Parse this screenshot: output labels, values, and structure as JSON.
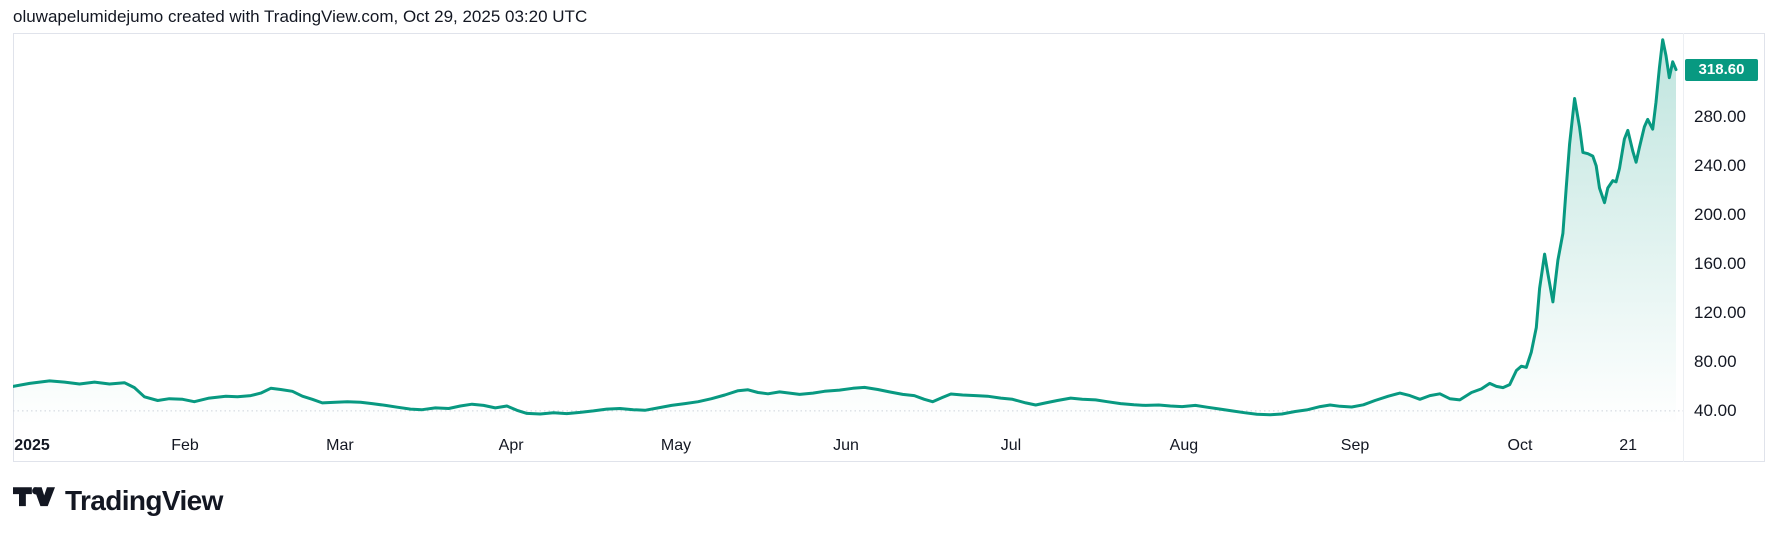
{
  "header": {
    "attribution": "oluwapelumidejumo created with TradingView.com, Oct 29, 2025 03:20 UTC"
  },
  "price_label": {
    "value": "318.60"
  },
  "footer": {
    "logo_text": "TradingView",
    "logo_icon": "tradingview-logo-icon"
  },
  "colors": {
    "line": "#089981",
    "fill_top": "rgba(8,153,129,0.26)",
    "fill_bottom": "rgba(8,153,129,0)",
    "badge_bg": "#089981",
    "badge_text": "#ffffff",
    "axis_text": "#131722",
    "border": "#e0e3eb",
    "gridline": "#cfd3dc"
  },
  "chart_data": {
    "type": "area",
    "title": "",
    "xlabel": "",
    "ylabel": "",
    "legend": [],
    "grid": "single faint dotted line at 40.00",
    "gridline_at": 40,
    "ylim": [
      28.5,
      348.5
    ],
    "last_value": 318.6,
    "y_ticks": [
      {
        "label": "280.00",
        "value": 280
      },
      {
        "label": "240.00",
        "value": 240
      },
      {
        "label": "200.00",
        "value": 200
      },
      {
        "label": "160.00",
        "value": 160
      },
      {
        "label": "120.00",
        "value": 120
      },
      {
        "label": "80.00",
        "value": 80
      },
      {
        "label": "40.00",
        "value": 40
      }
    ],
    "x_ticks": [
      {
        "label": "2025",
        "f": 0.0114,
        "bold": true
      },
      {
        "label": "Feb",
        "f": 0.1034
      },
      {
        "label": "Mar",
        "f": 0.1966
      },
      {
        "label": "Apr",
        "f": 0.2995
      },
      {
        "label": "May",
        "f": 0.3987
      },
      {
        "label": "Jun",
        "f": 0.5009
      },
      {
        "label": "Jul",
        "f": 0.6001
      },
      {
        "label": "Aug",
        "f": 0.7041
      },
      {
        "label": "Sep",
        "f": 0.807
      },
      {
        "label": "Oct",
        "f": 0.9062
      },
      {
        "label": "21",
        "f": 0.9712
      }
    ],
    "series": [
      {
        "name": "price",
        "points": [
          [
            0,
            60
          ],
          [
            0.01,
            62.5
          ],
          [
            0.022,
            64.5
          ],
          [
            0.031,
            63.5
          ],
          [
            0.04,
            62
          ],
          [
            0.049,
            63.5
          ],
          [
            0.058,
            62
          ],
          [
            0.067,
            63
          ],
          [
            0.073,
            59
          ],
          [
            0.079,
            51.5
          ],
          [
            0.087,
            48.5
          ],
          [
            0.094,
            50
          ],
          [
            0.102,
            49.5
          ],
          [
            0.109,
            47.5
          ],
          [
            0.118,
            50.5
          ],
          [
            0.128,
            52
          ],
          [
            0.135,
            51.5
          ],
          [
            0.143,
            52.5
          ],
          [
            0.149,
            54.5
          ],
          [
            0.155,
            58.5
          ],
          [
            0.161,
            57.5
          ],
          [
            0.168,
            56
          ],
          [
            0.174,
            52
          ],
          [
            0.18,
            49.5
          ],
          [
            0.186,
            46.5
          ],
          [
            0.194,
            47
          ],
          [
            0.201,
            47.5
          ],
          [
            0.209,
            47
          ],
          [
            0.216,
            46
          ],
          [
            0.224,
            44.5
          ],
          [
            0.231,
            43
          ],
          [
            0.239,
            41.5
          ],
          [
            0.246,
            41
          ],
          [
            0.254,
            42.5
          ],
          [
            0.262,
            42
          ],
          [
            0.269,
            44
          ],
          [
            0.276,
            45.5
          ],
          [
            0.283,
            44.5
          ],
          [
            0.29,
            42.5
          ],
          [
            0.297,
            44
          ],
          [
            0.303,
            40.5
          ],
          [
            0.309,
            38
          ],
          [
            0.317,
            37.5
          ],
          [
            0.325,
            38.5
          ],
          [
            0.333,
            37.8
          ],
          [
            0.341,
            38.8
          ],
          [
            0.349,
            40
          ],
          [
            0.357,
            41.5
          ],
          [
            0.365,
            42
          ],
          [
            0.373,
            41
          ],
          [
            0.38,
            40.5
          ],
          [
            0.388,
            42.5
          ],
          [
            0.396,
            44.5
          ],
          [
            0.404,
            46
          ],
          [
            0.412,
            47.5
          ],
          [
            0.42,
            50
          ],
          [
            0.428,
            53
          ],
          [
            0.436,
            56.5
          ],
          [
            0.442,
            57.2
          ],
          [
            0.448,
            55
          ],
          [
            0.454,
            54
          ],
          [
            0.461,
            55.5
          ],
          [
            0.467,
            54.5
          ],
          [
            0.473,
            53.5
          ],
          [
            0.481,
            54.5
          ],
          [
            0.488,
            56
          ],
          [
            0.497,
            57
          ],
          [
            0.505,
            58.5
          ],
          [
            0.512,
            59.2
          ],
          [
            0.52,
            57.5
          ],
          [
            0.527,
            55.5
          ],
          [
            0.535,
            53.5
          ],
          [
            0.542,
            52.5
          ],
          [
            0.548,
            49.5
          ],
          [
            0.553,
            47.5
          ],
          [
            0.559,
            51
          ],
          [
            0.564,
            53.8
          ],
          [
            0.571,
            53
          ],
          [
            0.579,
            52.5
          ],
          [
            0.586,
            52
          ],
          [
            0.594,
            50.5
          ],
          [
            0.601,
            49.5
          ],
          [
            0.609,
            46.5
          ],
          [
            0.615,
            44.8
          ],
          [
            0.621,
            46.5
          ],
          [
            0.628,
            48.5
          ],
          [
            0.636,
            50.5
          ],
          [
            0.643,
            49.5
          ],
          [
            0.651,
            49
          ],
          [
            0.658,
            47.5
          ],
          [
            0.666,
            46
          ],
          [
            0.674,
            45
          ],
          [
            0.681,
            44.5
          ],
          [
            0.689,
            44.8
          ],
          [
            0.696,
            44
          ],
          [
            0.703,
            43.5
          ],
          [
            0.711,
            44.5
          ],
          [
            0.718,
            43
          ],
          [
            0.726,
            41.5
          ],
          [
            0.733,
            40
          ],
          [
            0.741,
            38.5
          ],
          [
            0.748,
            37.2
          ],
          [
            0.756,
            36.8
          ],
          [
            0.763,
            37.5
          ],
          [
            0.771,
            39.5
          ],
          [
            0.778,
            40.8
          ],
          [
            0.786,
            43.5
          ],
          [
            0.792,
            44.8
          ],
          [
            0.798,
            43.8
          ],
          [
            0.805,
            43.2
          ],
          [
            0.812,
            45
          ],
          [
            0.819,
            48.5
          ],
          [
            0.827,
            52
          ],
          [
            0.834,
            54.5
          ],
          [
            0.84,
            52.5
          ],
          [
            0.846,
            49.5
          ],
          [
            0.852,
            52.5
          ],
          [
            0.858,
            54
          ],
          [
            0.864,
            50
          ],
          [
            0.87,
            49
          ],
          [
            0.877,
            55
          ],
          [
            0.883,
            58
          ],
          [
            0.888,
            62.5
          ],
          [
            0.892,
            60
          ],
          [
            0.896,
            59
          ],
          [
            0.9,
            61.5
          ],
          [
            0.904,
            73
          ],
          [
            0.907,
            76.5
          ],
          [
            0.91,
            75.5
          ],
          [
            0.913,
            88
          ],
          [
            0.916,
            108
          ],
          [
            0.918,
            140
          ],
          [
            0.921,
            168
          ],
          [
            0.923,
            152
          ],
          [
            0.926,
            129
          ],
          [
            0.929,
            163
          ],
          [
            0.932,
            185
          ],
          [
            0.934,
            222
          ],
          [
            0.936,
            258
          ],
          [
            0.939,
            295
          ],
          [
            0.942,
            272
          ],
          [
            0.944,
            251
          ],
          [
            0.947,
            250
          ],
          [
            0.95,
            248
          ],
          [
            0.952,
            240
          ],
          [
            0.954,
            222
          ],
          [
            0.957,
            210
          ],
          [
            0.959,
            222
          ],
          [
            0.962,
            228
          ],
          [
            0.964,
            227
          ],
          [
            0.966,
            238
          ],
          [
            0.969,
            262
          ],
          [
            0.971,
            269
          ],
          [
            0.974,
            252
          ],
          [
            0.976,
            243
          ],
          [
            0.978,
            255
          ],
          [
            0.981,
            272
          ],
          [
            0.983,
            278
          ],
          [
            0.986,
            270
          ],
          [
            0.988,
            292
          ],
          [
            0.99,
            320
          ],
          [
            0.992,
            343
          ],
          [
            0.994,
            330
          ],
          [
            0.996,
            312
          ],
          [
            0.998,
            325
          ],
          [
            1,
            318.6
          ]
        ]
      }
    ]
  }
}
